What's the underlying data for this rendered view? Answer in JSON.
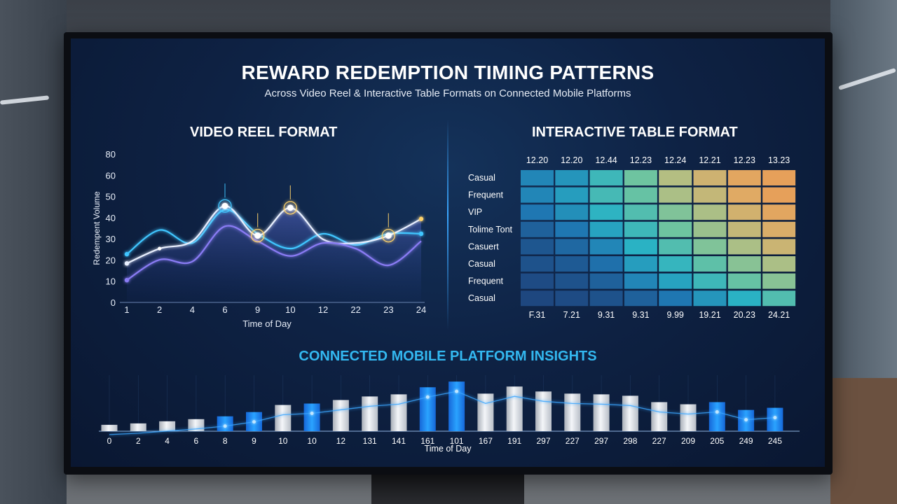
{
  "page": {
    "title": "REWARD REDEMPTION TIMING PATTERNS",
    "subtitle": "Across Video Reel & Interactive Table Formats on Connected Mobile Platforms"
  },
  "chart_data": [
    {
      "type": "line",
      "title": "VIDEO REEL FORMAT",
      "xlabel": "Time of Day",
      "ylabel": "Redempent Volume",
      "x_tick_labels": [
        "1",
        "2",
        "4",
        "6",
        "9",
        "10",
        "12",
        "22",
        "23",
        "24"
      ],
      "y_tick_labels": [
        "0",
        "10",
        "20",
        "30",
        "40",
        "50",
        "60",
        "80"
      ],
      "y_tick_values": [
        0,
        10,
        20,
        30,
        40,
        50,
        60,
        80
      ],
      "ylim": [
        0,
        80
      ],
      "grid": false,
      "series": [
        {
          "color": "#3fc6ff",
          "values": [
            26,
            39,
            32,
            50,
            37,
            29,
            37,
            31,
            37,
            37
          ]
        },
        {
          "color": "#e9f0ff",
          "values": [
            21,
            29,
            33,
            52,
            36,
            51,
            34,
            32,
            36,
            45
          ]
        },
        {
          "color": "#8a7cf5",
          "values": [
            12,
            23,
            22,
            41,
            33,
            25,
            32,
            29,
            20,
            33
          ]
        }
      ],
      "highlight_markers": [
        {
          "x_index": 3,
          "series_index": 1,
          "color": "#3fc6ff"
        },
        {
          "x_index": 4,
          "series_index": 1,
          "color": "#ffd36a"
        },
        {
          "x_index": 5,
          "series_index": 1,
          "color": "#ffd36a"
        },
        {
          "x_index": 8,
          "series_index": 1,
          "color": "#ffd36a"
        }
      ]
    },
    {
      "type": "heatmap",
      "title": "INTERACTIVE TABLE FORMAT",
      "top_labels": [
        "12.20",
        "12.20",
        "12.44",
        "12.23",
        "12.24",
        "12.21",
        "12.23",
        "13.23"
      ],
      "bottom_labels": [
        "F.31",
        "7.21",
        "9.31",
        "9.31",
        "9.99",
        "19.21",
        "20.23",
        "24.21"
      ],
      "row_labels": [
        "Casual",
        "Frequent",
        "VIP",
        "Tolime Tont",
        "Casuert",
        "Casual",
        "Frequent",
        "Casual"
      ],
      "values": [
        [
          0.3,
          0.35,
          0.5,
          0.62,
          0.78,
          0.85,
          0.92,
          0.95
        ],
        [
          0.3,
          0.38,
          0.52,
          0.6,
          0.76,
          0.82,
          0.9,
          0.95
        ],
        [
          0.25,
          0.33,
          0.46,
          0.55,
          0.66,
          0.76,
          0.86,
          0.92
        ],
        [
          0.15,
          0.25,
          0.4,
          0.5,
          0.62,
          0.72,
          0.82,
          0.88
        ],
        [
          0.1,
          0.18,
          0.3,
          0.45,
          0.55,
          0.66,
          0.76,
          0.84
        ],
        [
          0.08,
          0.12,
          0.22,
          0.38,
          0.48,
          0.58,
          0.68,
          0.76
        ],
        [
          0.05,
          0.08,
          0.15,
          0.3,
          0.4,
          0.5,
          0.6,
          0.68
        ],
        [
          0.03,
          0.05,
          0.08,
          0.15,
          0.25,
          0.35,
          0.45,
          0.55
        ]
      ]
    },
    {
      "type": "bar",
      "title": "CONNECTED MOBILE PLATFORM INSIGHTS",
      "xlabel": "Time of Day",
      "categories": [
        "0",
        "2",
        "4",
        "6",
        "8",
        "9",
        "10",
        "10",
        "12",
        "131",
        "141",
        "161",
        "101",
        "167",
        "191",
        "297",
        "227",
        "297",
        "298",
        "227",
        "209",
        "205",
        "249",
        "245"
      ],
      "values": [
        9,
        11,
        14,
        17,
        21,
        27,
        37,
        39,
        44,
        49,
        52,
        62,
        70,
        53,
        63,
        56,
        53,
        52,
        50,
        41,
        38,
        41,
        30,
        33
      ],
      "highlighted": [
        false,
        false,
        false,
        false,
        true,
        true,
        false,
        true,
        false,
        false,
        false,
        true,
        true,
        false,
        false,
        false,
        false,
        false,
        false,
        false,
        false,
        true,
        true,
        true
      ],
      "ylim": [
        0,
        80
      ],
      "colors": {
        "highlight": "#1f8df0",
        "normal": "#d9dde3"
      }
    }
  ]
}
